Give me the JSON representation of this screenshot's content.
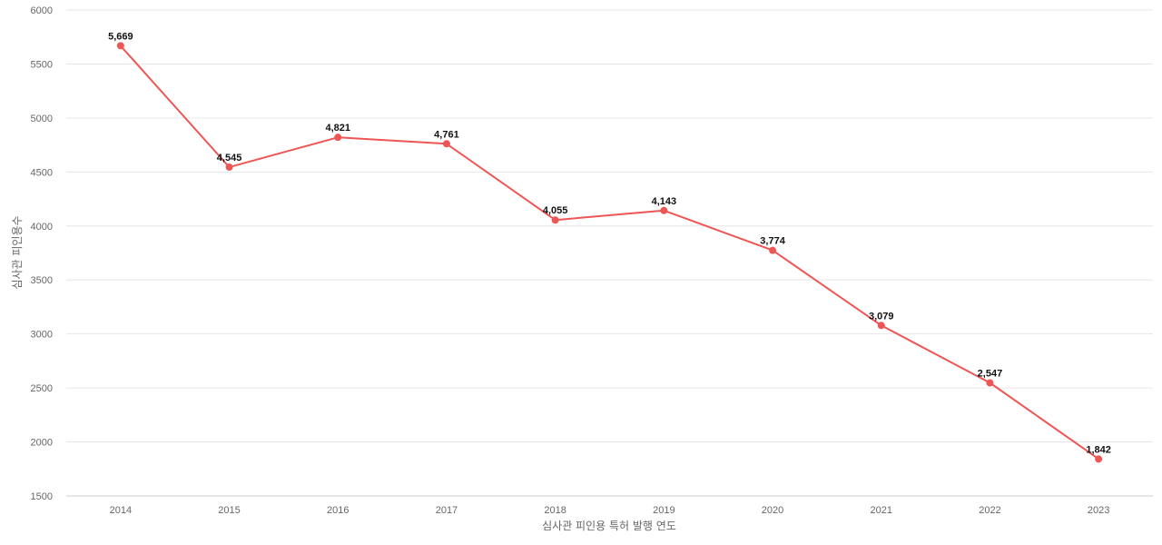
{
  "chart_data": {
    "type": "line",
    "categories": [
      "2014",
      "2015",
      "2016",
      "2017",
      "2018",
      "2019",
      "2020",
      "2021",
      "2022",
      "2023"
    ],
    "series": [
      {
        "values": [
          5669,
          4545,
          4821,
          4761,
          4055,
          4143,
          3774,
          3079,
          2547,
          1842
        ],
        "labels": [
          "5,669",
          "4,545",
          "4,821",
          "4,761",
          "4,055",
          "4,143",
          "3,774",
          "3,079",
          "2,547",
          "1,842"
        ],
        "color": "#ee5555"
      }
    ],
    "xlabel": "심사관 피인용 특허 발행 연도",
    "ylabel": "심사관 피인용수",
    "ylim": [
      1500,
      6000
    ],
    "yticks": [
      "1500",
      "2000",
      "2500",
      "3000",
      "3500",
      "4000",
      "4500",
      "5000",
      "5500",
      "6000"
    ],
    "grid": true,
    "gridColor": "#e6e6e6",
    "axisColor": "#cccccc"
  }
}
